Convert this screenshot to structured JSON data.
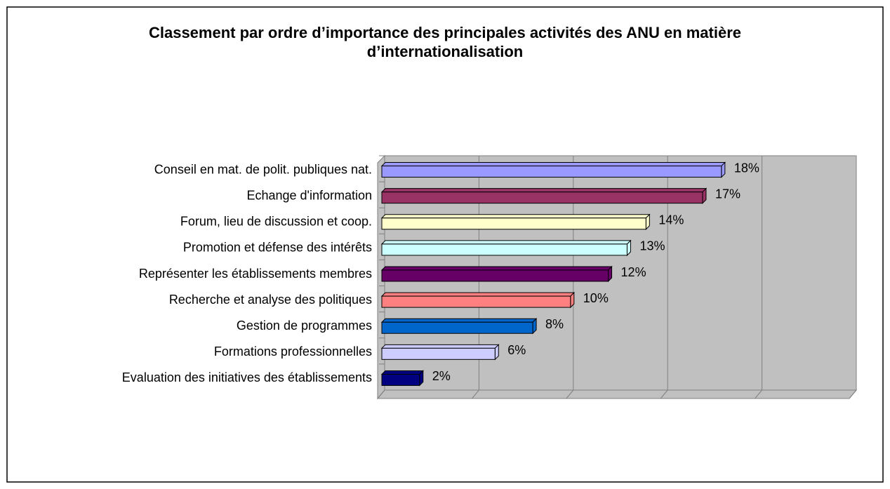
{
  "chart_data": {
    "type": "bar",
    "orientation": "horizontal",
    "title": "Classement par ordre d’importance des principales activités des ANU en matière d’internationalisation",
    "categories": [
      "Conseil en mat. de polit. publiques nat.",
      "Echange d'information",
      "Forum, lieu de discussion et coop.",
      "Promotion et défense des intérêts",
      "Représenter les établissements membres",
      "Recherche et analyse des politiques",
      "Gestion de programmes",
      "Formations professionnelles",
      "Evaluation des initiatives des établissements"
    ],
    "values": [
      18,
      17,
      14,
      13,
      12,
      10,
      8,
      6,
      2
    ],
    "value_labels": [
      "18%",
      "17%",
      "14%",
      "13%",
      "12%",
      "10%",
      "8%",
      "6%",
      "2%"
    ],
    "colors": [
      "#9999ff",
      "#993366",
      "#ffffcc",
      "#ccffff",
      "#660066",
      "#ff8080",
      "#0066cc",
      "#ccccff",
      "#000080"
    ],
    "xlim": [
      0,
      25
    ],
    "xticks": [
      0,
      5,
      10,
      15,
      20,
      25
    ],
    "grid": true
  }
}
